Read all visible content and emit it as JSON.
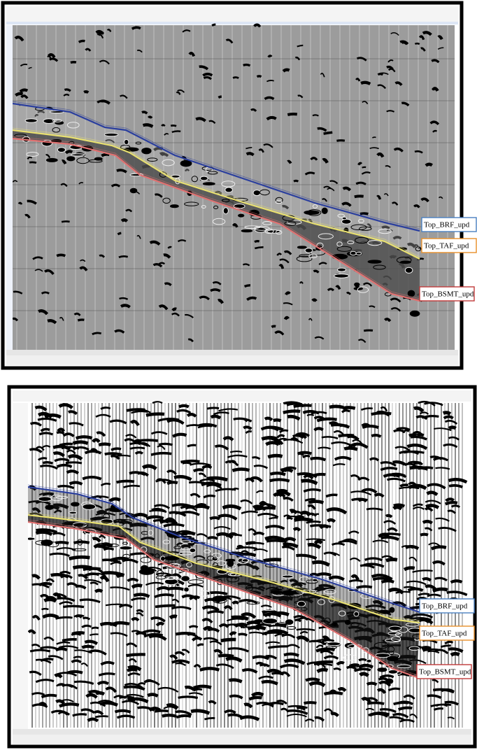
{
  "panels": [
    {
      "horizons": [
        {
          "label": "Top_BRF_upd"
        },
        {
          "label": "Top_TAF_upd"
        },
        {
          "label": "Top_BSMT_upd"
        }
      ]
    },
    {
      "horizons": [
        {
          "label": "Top_BRF_upd"
        },
        {
          "label": "Top_TAF_upd"
        },
        {
          "label": "Top_BSMT_upd"
        }
      ]
    }
  ]
}
